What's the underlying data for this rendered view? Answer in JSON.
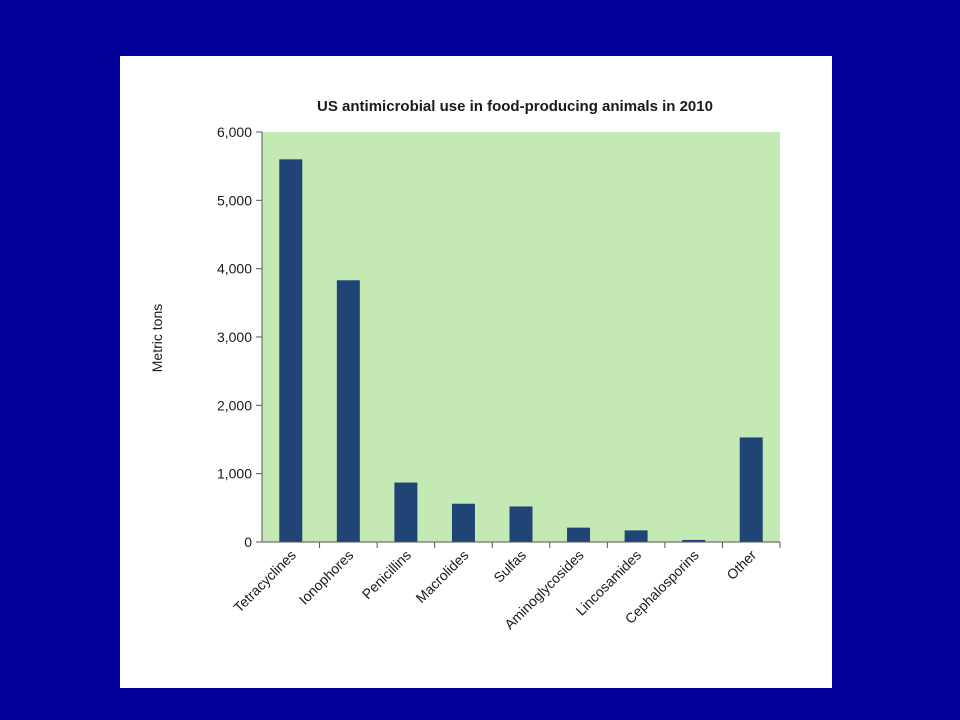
{
  "colors": {
    "slide_background": "#000099",
    "card_background": "#ffffff",
    "plot_background": "#c5e9b5",
    "bar": "#214477",
    "axis": "#555555"
  },
  "chart_data": {
    "type": "bar",
    "title": "US antimicrobial use in food-producing animals in 2010",
    "xlabel": "",
    "ylabel": "Metric tons",
    "ylim": [
      0,
      6000
    ],
    "yticks": [
      0,
      1000,
      2000,
      3000,
      4000,
      5000,
      6000
    ],
    "ytick_labels": [
      "0",
      "1,000",
      "2,000",
      "3,000",
      "4,000",
      "5,000",
      "6,000"
    ],
    "categories": [
      "Tetracyclines",
      "Ionophores",
      "Penicillins",
      "Macrolides",
      "Sulfas",
      "Aminoglycosides",
      "Lincosamides",
      "Cephalosporins",
      "Other"
    ],
    "values": [
      5600,
      3830,
      870,
      560,
      520,
      210,
      170,
      30,
      1530
    ],
    "grid": false,
    "legend": "none"
  }
}
